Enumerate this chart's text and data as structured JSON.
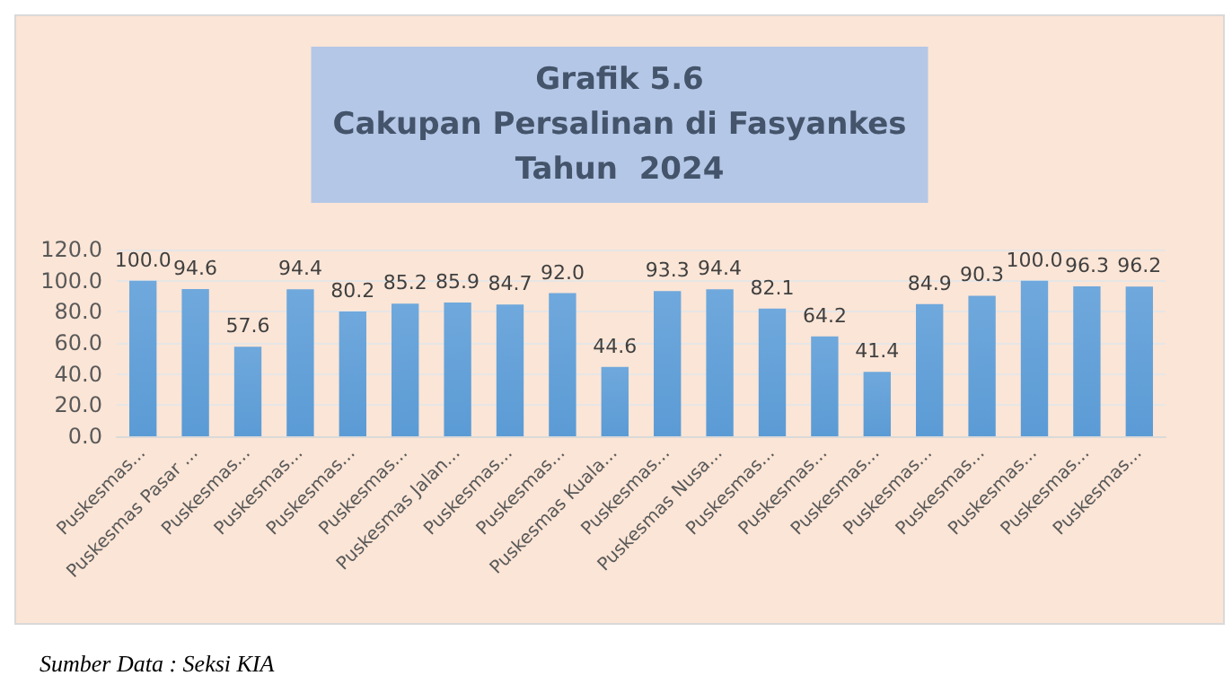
{
  "chart_data": {
    "type": "bar",
    "title": "Grafik 5.6\nCakupan Persalinan di Fasyankes\nTahun  2024",
    "categories": [
      "Puskesmas...",
      "Puskesmas Pasar ...",
      "Puskesmas...",
      "Puskesmas...",
      "Puskesmas...",
      "Puskesmas...",
      "Puskesmas Jalan...",
      "Puskesmas...",
      "Puskesmas...",
      "Puskesmas Kuala...",
      "Puskesmas...",
      "Puskesmas Nusa...",
      "Puskesmas...",
      "Puskesmas...",
      "Puskesmas...",
      "Puskesmas...",
      "Puskesmas...",
      "Puskesmas...",
      "Puskesmas...",
      "Puskesmas..."
    ],
    "values": [
      100.0,
      94.6,
      57.6,
      94.4,
      80.2,
      85.2,
      85.9,
      84.7,
      92.0,
      44.6,
      93.3,
      94.4,
      82.1,
      64.2,
      41.4,
      84.9,
      90.3,
      100.0,
      96.3,
      96.2
    ],
    "value_labels": [
      "100.0",
      "94.6",
      "57.6",
      "94.4",
      "80.2",
      "85.2",
      "85.9",
      "84.7",
      "92.0",
      "44.6",
      "93.3",
      "94.4",
      "82.1",
      "64.2",
      "41.4",
      "84.9",
      "90.3",
      "100.0",
      "96.3",
      "96.2"
    ],
    "color": "#5b9bd5",
    "ylim": [
      0,
      120
    ],
    "yticks": [
      {
        "value": 0,
        "label": "0.0"
      },
      {
        "value": 20,
        "label": "20.0"
      },
      {
        "value": 40,
        "label": "40.0"
      },
      {
        "value": 60,
        "label": "60.0"
      },
      {
        "value": 80,
        "label": "80.0"
      },
      {
        "value": 100,
        "label": "100.0"
      },
      {
        "value": 120,
        "label": "120.0"
      }
    ],
    "grid": "y",
    "annotations": [
      "Sumber Data : Seksi KIA"
    ]
  }
}
